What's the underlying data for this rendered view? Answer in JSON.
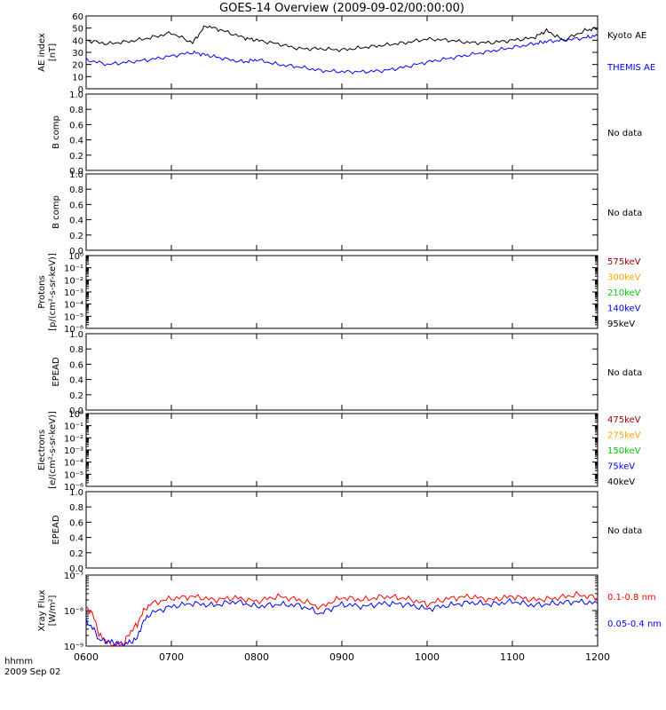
{
  "title": "GOES-14 Overview (2009-09-02/00:00:00)",
  "time_axis": {
    "tick_labels": [
      "0600",
      "0700",
      "0800",
      "0900",
      "1000",
      "1100",
      "1200"
    ],
    "footer_line1": "hhmm",
    "footer_line2": "2009 Sep 02"
  },
  "chart_data": [
    {
      "type": "line",
      "ylabel_line1": "AE index",
      "ylabel_line2": "[nT]",
      "ylim": [
        0,
        60
      ],
      "yticks": [
        "0",
        "10",
        "20",
        "30",
        "40",
        "50",
        "60"
      ],
      "x_hours": [
        6.0,
        6.25,
        6.5,
        6.75,
        7.0,
        7.25,
        7.4,
        7.6,
        7.85,
        8.0,
        8.25,
        8.5,
        8.75,
        9.0,
        9.25,
        9.5,
        9.75,
        10.0,
        10.25,
        10.5,
        10.75,
        11.0,
        11.25,
        11.4,
        11.6,
        11.85,
        12.0
      ],
      "series": [
        {
          "name": "Kyoto AE",
          "color": "#000000",
          "values": [
            40,
            37,
            39,
            42,
            46,
            38,
            52,
            48,
            42,
            40,
            37,
            33,
            33,
            32,
            34,
            36,
            38,
            41,
            40,
            38,
            38,
            40,
            42,
            48,
            40,
            48,
            50
          ]
        },
        {
          "name": "THEMIS AE",
          "color": "#0000ff",
          "values": [
            24,
            20,
            22,
            24,
            27,
            30,
            28,
            25,
            22,
            24,
            20,
            18,
            15,
            14,
            14,
            15,
            18,
            22,
            25,
            28,
            31,
            34,
            37,
            39,
            40,
            42,
            44
          ]
        }
      ]
    },
    {
      "type": "line",
      "ylabel_line1": "B comp",
      "ylim": [
        0,
        1
      ],
      "yticks": [
        "0.0",
        "0.2",
        "0.4",
        "0.6",
        "0.8",
        "1.0"
      ],
      "status": "No data",
      "series": []
    },
    {
      "type": "line",
      "ylabel_line1": "B comp",
      "ylim": [
        0,
        1
      ],
      "yticks": [
        "0.0",
        "0.2",
        "0.4",
        "0.6",
        "0.8",
        "1.0"
      ],
      "status": "No data",
      "series": []
    },
    {
      "type": "line",
      "log_scale": true,
      "ylabel_line1": "Protons",
      "ylabel_line2": "[p/(cm²-s-sr-keV)]",
      "ylim": [
        1e-06,
        1
      ],
      "yticks": [
        "10⁻⁶",
        "10⁻⁵",
        "10⁻⁴",
        "10⁻³",
        "10⁻²",
        "10⁻¹",
        "10⁰"
      ],
      "legend": [
        {
          "name": "575keV",
          "color": "#990000"
        },
        {
          "name": "300keV",
          "color": "#ffa500"
        },
        {
          "name": "210keV",
          "color": "#00cc00"
        },
        {
          "name": "140keV",
          "color": "#0000ff"
        },
        {
          "name": "95keV",
          "color": "#000000"
        }
      ],
      "series": []
    },
    {
      "type": "line",
      "ylabel_line1": "EPEAD",
      "ylim": [
        0,
        1
      ],
      "yticks": [
        "0.0",
        "0.2",
        "0.4",
        "0.6",
        "0.8",
        "1.0"
      ],
      "status": "No data",
      "series": []
    },
    {
      "type": "line",
      "log_scale": true,
      "ylabel_line1": "Electrons",
      "ylabel_line2": "[e/(cm²-s-sr-keV)]",
      "ylim": [
        1e-06,
        1
      ],
      "yticks": [
        "10⁻⁶",
        "10⁻⁵",
        "10⁻⁴",
        "10⁻³",
        "10⁻²",
        "10⁻¹",
        "10⁰"
      ],
      "legend": [
        {
          "name": "475keV",
          "color": "#990000"
        },
        {
          "name": "275keV",
          "color": "#ffa500"
        },
        {
          "name": "150keV",
          "color": "#00cc00"
        },
        {
          "name": "75keV",
          "color": "#0000ff"
        },
        {
          "name": "40keV",
          "color": "#000000"
        }
      ],
      "series": []
    },
    {
      "type": "line",
      "ylabel_line1": "EPEAD",
      "ylim": [
        0,
        1
      ],
      "yticks": [
        "0.0",
        "0.2",
        "0.4",
        "0.6",
        "0.8",
        "1.0"
      ],
      "status": "No data",
      "series": []
    },
    {
      "type": "line",
      "log_scale": true,
      "ylabel_line1": "Xray Flux",
      "ylabel_line2": "[W/m²]",
      "ylim": [
        1e-09,
        1e-07
      ],
      "yticks": [
        "10⁻⁹",
        "10⁻⁸",
        "10⁻⁷"
      ],
      "x_hours": [
        6.0,
        6.15,
        6.3,
        6.45,
        6.6,
        6.75,
        7.0,
        7.25,
        7.5,
        7.75,
        8.0,
        8.25,
        8.5,
        8.75,
        9.0,
        9.25,
        9.5,
        9.75,
        10.0,
        10.25,
        10.5,
        10.75,
        11.0,
        11.25,
        11.5,
        11.75,
        12.0
      ],
      "series": [
        {
          "name": "0.1-0.8 nm",
          "color": "#ff0000",
          "values": [
            1.3e-08,
            2e-09,
            1e-09,
            1.2e-09,
            4e-09,
            1.5e-08,
            2.2e-08,
            2.5e-08,
            2e-08,
            2.3e-08,
            1.8e-08,
            2.5e-08,
            2e-08,
            1.2e-08,
            2.3e-08,
            2e-08,
            2.5e-08,
            2.2e-08,
            1.5e-08,
            2.2e-08,
            2.5e-08,
            2e-08,
            2.5e-08,
            2e-08,
            2.2e-08,
            2.8e-08,
            2.3e-08
          ]
        },
        {
          "name": "0.05-0.4 nm",
          "color": "#0000ff",
          "values": [
            5e-09,
            1.5e-09,
            1.3e-09,
            1.1e-09,
            1.6e-09,
            8e-09,
            1.3e-08,
            1.6e-08,
            1.4e-08,
            1.8e-08,
            1.3e-08,
            1.5e-08,
            1.4e-08,
            8e-09,
            1.5e-08,
            1.3e-08,
            1.6e-08,
            1.5e-08,
            1.1e-08,
            1.4e-08,
            1.7e-08,
            1.5e-08,
            1.8e-08,
            1.4e-08,
            1.6e-08,
            1.8e-08,
            1.6e-08
          ]
        }
      ]
    }
  ]
}
